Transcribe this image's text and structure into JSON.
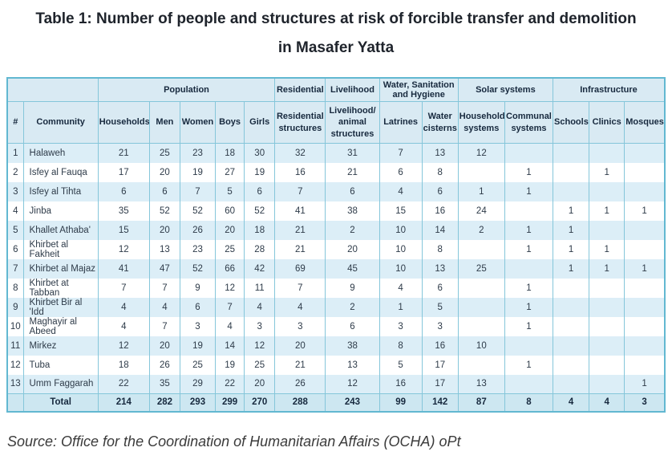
{
  "chart_data": {
    "type": "table",
    "title": "Table 1: Number of people and structures at risk of forcible transfer and demolition in Masafer Yatta",
    "source_note": "Source: Office for the Coordination of Humanitarian Affairs (OCHA) oPt",
    "group_headers": [
      {
        "label": "",
        "span": 2
      },
      {
        "label": "Population",
        "span": 5
      },
      {
        "label": "Residential",
        "span": 1
      },
      {
        "label": "Livelihood",
        "span": 1
      },
      {
        "label": "Water, Sanitation and Hygiene",
        "span": 2
      },
      {
        "label": "Solar systems",
        "span": 2
      },
      {
        "label": "Infrastructure",
        "span": 3
      }
    ],
    "columns": [
      "#",
      "Community",
      "Households",
      "Men",
      "Women",
      "Boys",
      "Girls",
      "Residential structures",
      "Livelihood/ animal structures",
      "Latrines",
      "Water cisterns",
      "Household systems",
      "Communal systems",
      "Schools",
      "Clinics",
      "Mosques"
    ],
    "rows": [
      [
        "1",
        "Halaweh",
        "21",
        "25",
        "23",
        "18",
        "30",
        "32",
        "31",
        "7",
        "13",
        "12",
        "",
        "",
        "",
        ""
      ],
      [
        "2",
        "Isfey al Fauqa",
        "17",
        "20",
        "19",
        "27",
        "19",
        "16",
        "21",
        "6",
        "8",
        "",
        "1",
        "",
        "1",
        ""
      ],
      [
        "3",
        "Isfey al Tihta",
        "6",
        "6",
        "7",
        "5",
        "6",
        "7",
        "6",
        "4",
        "6",
        "1",
        "1",
        "",
        "",
        ""
      ],
      [
        "4",
        "Jinba",
        "35",
        "52",
        "52",
        "60",
        "52",
        "41",
        "38",
        "15",
        "16",
        "24",
        "",
        "1",
        "1",
        "1"
      ],
      [
        "5",
        "Khallet Athaba'",
        "15",
        "20",
        "26",
        "20",
        "18",
        "21",
        "2",
        "10",
        "14",
        "2",
        "1",
        "1",
        "",
        ""
      ],
      [
        "6",
        "Khirbet al Fakheit",
        "12",
        "13",
        "23",
        "25",
        "28",
        "21",
        "20",
        "10",
        "8",
        "",
        "1",
        "1",
        "1",
        ""
      ],
      [
        "7",
        "Khirbet al Majaz",
        "41",
        "47",
        "52",
        "66",
        "42",
        "69",
        "45",
        "10",
        "13",
        "25",
        "",
        "1",
        "1",
        "1"
      ],
      [
        "8",
        "Khirbet at Tabban",
        "7",
        "7",
        "9",
        "12",
        "11",
        "7",
        "9",
        "4",
        "6",
        "",
        "1",
        "",
        "",
        ""
      ],
      [
        "9",
        "Khirbet Bir al 'Idd",
        "4",
        "4",
        "6",
        "7",
        "4",
        "4",
        "2",
        "1",
        "5",
        "",
        "1",
        "",
        "",
        ""
      ],
      [
        "10",
        "Maghayir al Abeed",
        "4",
        "7",
        "3",
        "4",
        "3",
        "3",
        "6",
        "3",
        "3",
        "",
        "1",
        "",
        "",
        ""
      ],
      [
        "11",
        "Mirkez",
        "12",
        "20",
        "19",
        "14",
        "12",
        "20",
        "38",
        "8",
        "16",
        "10",
        "",
        "",
        "",
        ""
      ],
      [
        "12",
        "Tuba",
        "18",
        "26",
        "25",
        "19",
        "25",
        "21",
        "13",
        "5",
        "17",
        "",
        "1",
        "",
        "",
        ""
      ],
      [
        "13",
        "Umm Faggarah",
        "22",
        "35",
        "29",
        "22",
        "20",
        "26",
        "12",
        "16",
        "17",
        "13",
        "",
        "",
        "",
        "1"
      ]
    ],
    "total_row": [
      "",
      "Total",
      "214",
      "282",
      "293",
      "299",
      "270",
      "288",
      "243",
      "99",
      "142",
      "87",
      "8",
      "4",
      "4",
      "3"
    ],
    "colors": {
      "header_bg": "#d9eaf3",
      "row_alt_bg": "#dceef7",
      "row_bg": "#ffffff",
      "total_bg": "#cde7f1",
      "border": "#85c6da",
      "outer_border": "#62b8d1",
      "header_text": "#17293e",
      "body_text": "#2e3b49",
      "title_text": "#1e232b",
      "source_text": "#3b3b3b"
    }
  }
}
